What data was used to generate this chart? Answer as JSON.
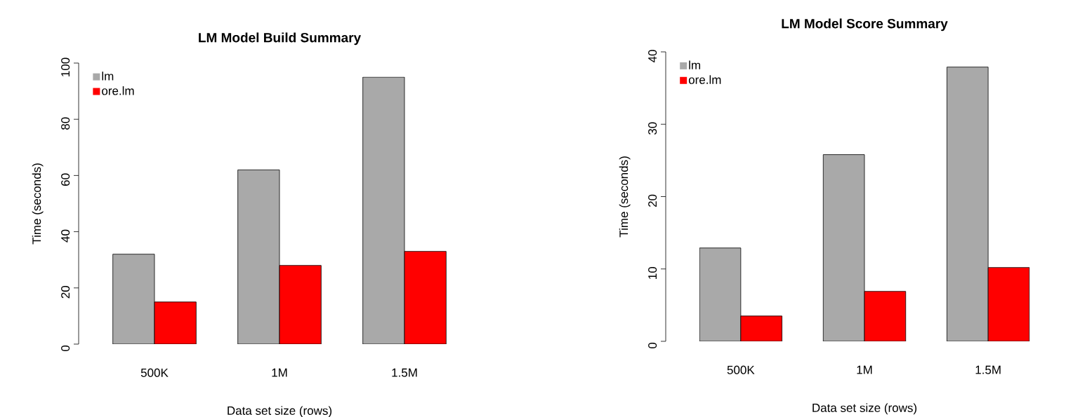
{
  "chart_data": [
    {
      "type": "bar",
      "title": "LM Model Build Summary",
      "xlabel": "Data set size (rows)",
      "ylabel": "Time (seconds)",
      "categories": [
        "500K",
        "1M",
        "1.5M"
      ],
      "series": [
        {
          "name": "lm",
          "color": "#a9a9a9",
          "values": [
            32,
            62,
            95
          ]
        },
        {
          "name": "ore.lm",
          "color": "#ff0000",
          "values": [
            15,
            28,
            33
          ]
        }
      ],
      "ylim": [
        0,
        100
      ],
      "yticks": [
        0,
        20,
        40,
        60,
        80,
        100
      ],
      "legend": "top left"
    },
    {
      "type": "bar",
      "title": "LM Model Score Summary",
      "xlabel": "Data set size (rows)",
      "ylabel": "Time (seconds)",
      "categories": [
        "500K",
        "1M",
        "1.5M"
      ],
      "series": [
        {
          "name": "lm",
          "color": "#a9a9a9",
          "values": [
            12.9,
            25.8,
            37.9
          ]
        },
        {
          "name": "ore.lm",
          "color": "#ff0000",
          "values": [
            3.5,
            6.9,
            10.2
          ]
        }
      ],
      "ylim": [
        0,
        40
      ],
      "yticks": [
        0,
        10,
        20,
        30,
        40
      ],
      "legend": "top left"
    }
  ]
}
